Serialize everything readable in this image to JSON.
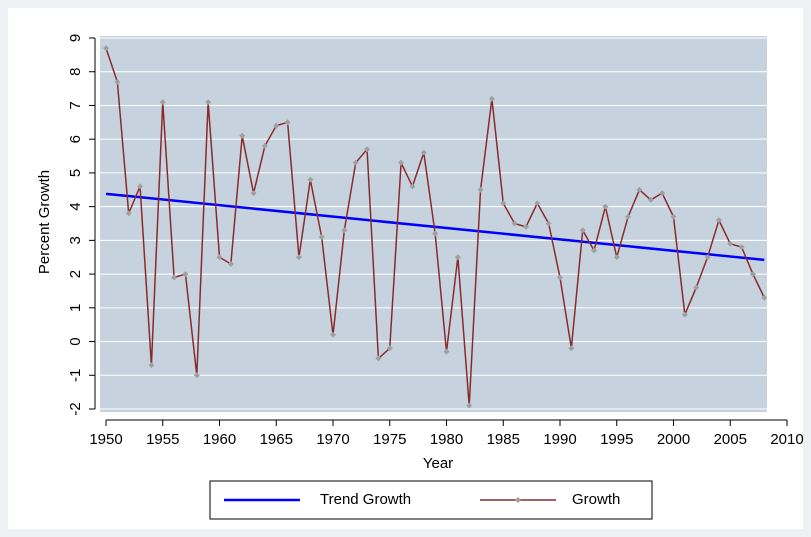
{
  "chart_data": {
    "type": "line",
    "x_label": "Year",
    "y_label": "Percent Growth",
    "xlim": [
      1950,
      2010
    ],
    "xticks": [
      1950,
      1955,
      1960,
      1965,
      1970,
      1975,
      1980,
      1985,
      1990,
      1995,
      2000,
      2005,
      2010
    ],
    "ylim": [
      -2,
      9
    ],
    "yticks": [
      -2,
      -1,
      0,
      1,
      2,
      3,
      4,
      5,
      6,
      7,
      8,
      9
    ],
    "grid": true,
    "legend": "bottom",
    "series": [
      {
        "name": "Trend Growth",
        "color": "#0000ff",
        "x": [
          1950,
          2008
        ],
        "values": [
          4.38,
          2.42
        ]
      },
      {
        "name": "Growth",
        "color": "#8b2a2a",
        "marker_color": "#a0a0a0",
        "x": [
          1950,
          1951,
          1952,
          1953,
          1954,
          1955,
          1956,
          1957,
          1958,
          1959,
          1960,
          1961,
          1962,
          1963,
          1964,
          1965,
          1966,
          1967,
          1968,
          1969,
          1970,
          1971,
          1972,
          1973,
          1974,
          1975,
          1976,
          1977,
          1978,
          1979,
          1980,
          1981,
          1982,
          1983,
          1984,
          1985,
          1986,
          1987,
          1988,
          1989,
          1990,
          1991,
          1992,
          1993,
          1994,
          1995,
          1996,
          1997,
          1998,
          1999,
          2000,
          2001,
          2002,
          2003,
          2004,
          2005,
          2006,
          2007,
          2008
        ],
        "values": [
          8.7,
          7.7,
          3.8,
          4.6,
          -0.7,
          7.1,
          1.9,
          2.0,
          -1.0,
          7.1,
          2.5,
          2.3,
          6.1,
          4.4,
          5.8,
          6.4,
          6.5,
          2.5,
          4.8,
          3.1,
          0.2,
          3.3,
          5.3,
          5.7,
          -0.5,
          -0.2,
          5.3,
          4.6,
          5.6,
          3.2,
          -0.3,
          2.5,
          -1.9,
          4.5,
          7.2,
          4.1,
          3.5,
          3.4,
          4.1,
          3.5,
          1.9,
          -0.2,
          3.3,
          2.7,
          4.0,
          2.5,
          3.7,
          4.5,
          4.2,
          4.4,
          3.7,
          0.8,
          1.6,
          2.5,
          3.6,
          2.9,
          2.8,
          2.0,
          1.3
        ]
      }
    ]
  }
}
